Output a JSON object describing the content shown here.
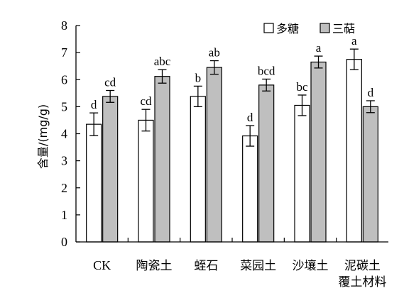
{
  "chart_data": {
    "type": "bar",
    "title": "",
    "xlabel": "",
    "ylabel": "含量/(mg/g)",
    "ylim": [
      0,
      8
    ],
    "yticks": [
      0,
      1,
      2,
      3,
      4,
      5,
      6,
      7,
      8
    ],
    "grid": false,
    "legend_position": "top-right",
    "categories": [
      "CK",
      "陶瓷土",
      "蛭石",
      "菜园土",
      "沙壤土",
      "泥碳土"
    ],
    "category_sublabels": [
      "",
      "",
      "",
      "",
      "",
      "覆土材料"
    ],
    "series": [
      {
        "name": "多糖",
        "color": "#ffffff",
        "values": [
          4.35,
          4.5,
          5.38,
          3.92,
          5.05,
          6.75
        ],
        "errors": [
          0.42,
          0.4,
          0.38,
          0.38,
          0.38,
          0.38
        ],
        "labels": [
          "d",
          "cd",
          "b",
          "d",
          "bc",
          "a"
        ]
      },
      {
        "name": "三萜",
        "color": "#bfbfbf",
        "values": [
          5.38,
          6.12,
          6.45,
          5.8,
          6.65,
          5.0
        ],
        "errors": [
          0.22,
          0.25,
          0.25,
          0.22,
          0.22,
          0.22
        ],
        "labels": [
          "cd",
          "abc",
          "ab",
          "bcd",
          "a",
          "d"
        ]
      }
    ]
  }
}
